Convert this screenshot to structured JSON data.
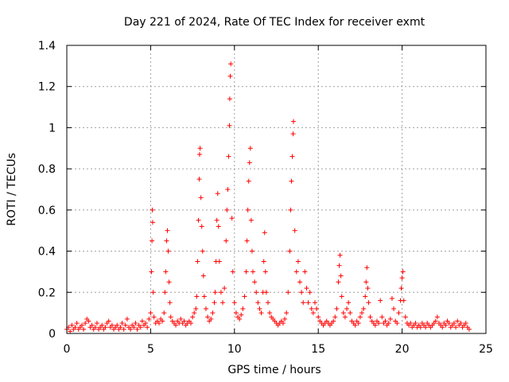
{
  "chart_data": {
    "type": "scatter",
    "title": "Day 221 of 2024, Rate Of TEC Index for receiver exmt",
    "xlabel": "GPS time / hours",
    "ylabel": "ROTI / TECUs",
    "xlim": [
      0,
      25
    ],
    "ylim": [
      0,
      1.4
    ],
    "xticks": [
      0,
      5,
      10,
      15,
      20,
      25
    ],
    "yticks": [
      0,
      0.2,
      0.4,
      0.6,
      0.8,
      1,
      1.2,
      1.4
    ],
    "ytick_labels": [
      "0",
      "0.2",
      "0.4",
      "0.6",
      "0.8",
      "1",
      "1.2",
      "1.4"
    ],
    "grid": true,
    "marker": "plus",
    "color": "#ff0000",
    "series": [
      {
        "points": [
          [
            0.0,
            0.02
          ],
          [
            0.1,
            0.03
          ],
          [
            0.2,
            0.01
          ],
          [
            0.3,
            0.04
          ],
          [
            0.4,
            0.02
          ],
          [
            0.5,
            0.03
          ],
          [
            0.6,
            0.05
          ],
          [
            0.7,
            0.02
          ],
          [
            0.8,
            0.03
          ],
          [
            0.9,
            0.04
          ],
          [
            1.0,
            0.02
          ],
          [
            1.1,
            0.05
          ],
          [
            1.2,
            0.07
          ],
          [
            1.3,
            0.06
          ],
          [
            1.4,
            0.03
          ],
          [
            1.5,
            0.04
          ],
          [
            1.6,
            0.02
          ],
          [
            1.7,
            0.03
          ],
          [
            1.8,
            0.05
          ],
          [
            1.9,
            0.02
          ],
          [
            2.0,
            0.03
          ],
          [
            2.1,
            0.04
          ],
          [
            2.2,
            0.02
          ],
          [
            2.3,
            0.03
          ],
          [
            2.4,
            0.05
          ],
          [
            2.5,
            0.06
          ],
          [
            2.6,
            0.03
          ],
          [
            2.7,
            0.04
          ],
          [
            2.8,
            0.02
          ],
          [
            2.9,
            0.03
          ],
          [
            3.0,
            0.04
          ],
          [
            3.1,
            0.02
          ],
          [
            3.2,
            0.03
          ],
          [
            3.3,
            0.05
          ],
          [
            3.4,
            0.02
          ],
          [
            3.5,
            0.04
          ],
          [
            3.6,
            0.07
          ],
          [
            3.7,
            0.03
          ],
          [
            3.8,
            0.02
          ],
          [
            3.9,
            0.04
          ],
          [
            4.0,
            0.03
          ],
          [
            4.1,
            0.05
          ],
          [
            4.2,
            0.02
          ],
          [
            4.3,
            0.04
          ],
          [
            4.4,
            0.03
          ],
          [
            4.5,
            0.06
          ],
          [
            4.6,
            0.04
          ],
          [
            4.7,
            0.05
          ],
          [
            4.8,
            0.03
          ],
          [
            4.9,
            0.07
          ],
          [
            5.0,
            0.1
          ],
          [
            5.05,
            0.3
          ],
          [
            5.08,
            0.45
          ],
          [
            5.1,
            0.6
          ],
          [
            5.12,
            0.54
          ],
          [
            5.15,
            0.2
          ],
          [
            5.2,
            0.08
          ],
          [
            5.3,
            0.05
          ],
          [
            5.4,
            0.06
          ],
          [
            5.5,
            0.05
          ],
          [
            5.6,
            0.07
          ],
          [
            5.7,
            0.06
          ],
          [
            5.8,
            0.1
          ],
          [
            5.85,
            0.2
          ],
          [
            5.9,
            0.3
          ],
          [
            5.95,
            0.45
          ],
          [
            6.0,
            0.5
          ],
          [
            6.05,
            0.4
          ],
          [
            6.1,
            0.25
          ],
          [
            6.15,
            0.15
          ],
          [
            6.2,
            0.08
          ],
          [
            6.3,
            0.06
          ],
          [
            6.4,
            0.05
          ],
          [
            6.5,
            0.04
          ],
          [
            6.6,
            0.06
          ],
          [
            6.7,
            0.05
          ],
          [
            6.8,
            0.07
          ],
          [
            6.9,
            0.05
          ],
          [
            7.0,
            0.06
          ],
          [
            7.1,
            0.04
          ],
          [
            7.2,
            0.05
          ],
          [
            7.3,
            0.06
          ],
          [
            7.4,
            0.05
          ],
          [
            7.5,
            0.08
          ],
          [
            7.6,
            0.1
          ],
          [
            7.7,
            0.12
          ],
          [
            7.75,
            0.18
          ],
          [
            7.8,
            0.35
          ],
          [
            7.85,
            0.55
          ],
          [
            7.9,
            0.75
          ],
          [
            7.92,
            0.87
          ],
          [
            7.95,
            0.9
          ],
          [
            8.0,
            0.66
          ],
          [
            8.05,
            0.52
          ],
          [
            8.1,
            0.4
          ],
          [
            8.15,
            0.28
          ],
          [
            8.2,
            0.18
          ],
          [
            8.3,
            0.12
          ],
          [
            8.4,
            0.08
          ],
          [
            8.5,
            0.06
          ],
          [
            8.6,
            0.07
          ],
          [
            8.7,
            0.1
          ],
          [
            8.8,
            0.15
          ],
          [
            8.85,
            0.2
          ],
          [
            8.9,
            0.35
          ],
          [
            8.95,
            0.55
          ],
          [
            9.0,
            0.68
          ],
          [
            9.05,
            0.52
          ],
          [
            9.1,
            0.35
          ],
          [
            9.2,
            0.2
          ],
          [
            9.3,
            0.15
          ],
          [
            9.4,
            0.22
          ],
          [
            9.5,
            0.45
          ],
          [
            9.55,
            0.6
          ],
          [
            9.6,
            0.7
          ],
          [
            9.65,
            0.86
          ],
          [
            9.7,
            1.01
          ],
          [
            9.72,
            1.14
          ],
          [
            9.75,
            1.25
          ],
          [
            9.78,
            1.31
          ],
          [
            9.85,
            0.56
          ],
          [
            9.9,
            0.3
          ],
          [
            10.0,
            0.15
          ],
          [
            10.1,
            0.1
          ],
          [
            10.2,
            0.08
          ],
          [
            10.3,
            0.07
          ],
          [
            10.4,
            0.09
          ],
          [
            10.5,
            0.12
          ],
          [
            10.6,
            0.18
          ],
          [
            10.7,
            0.3
          ],
          [
            10.75,
            0.45
          ],
          [
            10.8,
            0.6
          ],
          [
            10.85,
            0.74
          ],
          [
            10.9,
            0.83
          ],
          [
            10.95,
            0.9
          ],
          [
            11.0,
            0.55
          ],
          [
            11.05,
            0.4
          ],
          [
            11.1,
            0.3
          ],
          [
            11.2,
            0.25
          ],
          [
            11.3,
            0.2
          ],
          [
            11.4,
            0.15
          ],
          [
            11.5,
            0.12
          ],
          [
            11.6,
            0.1
          ],
          [
            11.7,
            0.2
          ],
          [
            11.75,
            0.35
          ],
          [
            11.8,
            0.49
          ],
          [
            11.85,
            0.3
          ],
          [
            11.9,
            0.2
          ],
          [
            12.0,
            0.15
          ],
          [
            12.1,
            0.1
          ],
          [
            12.2,
            0.08
          ],
          [
            12.3,
            0.07
          ],
          [
            12.4,
            0.06
          ],
          [
            12.5,
            0.05
          ],
          [
            12.6,
            0.04
          ],
          [
            12.7,
            0.05
          ],
          [
            12.8,
            0.06
          ],
          [
            12.9,
            0.05
          ],
          [
            13.0,
            0.07
          ],
          [
            13.1,
            0.1
          ],
          [
            13.2,
            0.2
          ],
          [
            13.3,
            0.4
          ],
          [
            13.35,
            0.6
          ],
          [
            13.4,
            0.74
          ],
          [
            13.45,
            0.86
          ],
          [
            13.5,
            0.97
          ],
          [
            13.52,
            1.03
          ],
          [
            13.6,
            0.5
          ],
          [
            13.7,
            0.3
          ],
          [
            13.8,
            0.35
          ],
          [
            13.9,
            0.25
          ],
          [
            14.0,
            0.2
          ],
          [
            14.1,
            0.15
          ],
          [
            14.2,
            0.3
          ],
          [
            14.3,
            0.22
          ],
          [
            14.4,
            0.15
          ],
          [
            14.5,
            0.2
          ],
          [
            14.6,
            0.12
          ],
          [
            14.7,
            0.1
          ],
          [
            14.8,
            0.15
          ],
          [
            14.9,
            0.12
          ],
          [
            15.0,
            0.08
          ],
          [
            15.1,
            0.06
          ],
          [
            15.2,
            0.05
          ],
          [
            15.3,
            0.04
          ],
          [
            15.4,
            0.05
          ],
          [
            15.5,
            0.06
          ],
          [
            15.6,
            0.05
          ],
          [
            15.7,
            0.04
          ],
          [
            15.8,
            0.05
          ],
          [
            15.9,
            0.06
          ],
          [
            16.0,
            0.08
          ],
          [
            16.1,
            0.12
          ],
          [
            16.2,
            0.25
          ],
          [
            16.25,
            0.33
          ],
          [
            16.3,
            0.38
          ],
          [
            16.35,
            0.28
          ],
          [
            16.4,
            0.18
          ],
          [
            16.5,
            0.1
          ],
          [
            16.6,
            0.08
          ],
          [
            16.7,
            0.12
          ],
          [
            16.8,
            0.15
          ],
          [
            16.9,
            0.1
          ],
          [
            17.0,
            0.06
          ],
          [
            17.1,
            0.05
          ],
          [
            17.2,
            0.04
          ],
          [
            17.3,
            0.06
          ],
          [
            17.4,
            0.05
          ],
          [
            17.5,
            0.08
          ],
          [
            17.6,
            0.1
          ],
          [
            17.7,
            0.12
          ],
          [
            17.8,
            0.18
          ],
          [
            17.85,
            0.25
          ],
          [
            17.9,
            0.32
          ],
          [
            17.95,
            0.22
          ],
          [
            18.0,
            0.15
          ],
          [
            18.1,
            0.08
          ],
          [
            18.2,
            0.06
          ],
          [
            18.3,
            0.05
          ],
          [
            18.4,
            0.04
          ],
          [
            18.5,
            0.06
          ],
          [
            18.6,
            0.05
          ],
          [
            18.7,
            0.16
          ],
          [
            18.8,
            0.08
          ],
          [
            18.9,
            0.05
          ],
          [
            19.0,
            0.06
          ],
          [
            19.1,
            0.04
          ],
          [
            19.2,
            0.05
          ],
          [
            19.3,
            0.07
          ],
          [
            19.4,
            0.17
          ],
          [
            19.5,
            0.12
          ],
          [
            19.6,
            0.06
          ],
          [
            19.7,
            0.05
          ],
          [
            19.8,
            0.1
          ],
          [
            19.9,
            0.16
          ],
          [
            19.95,
            0.22
          ],
          [
            20.0,
            0.27
          ],
          [
            20.05,
            0.3
          ],
          [
            20.1,
            0.16
          ],
          [
            20.2,
            0.08
          ],
          [
            20.3,
            0.05
          ],
          [
            20.4,
            0.04
          ],
          [
            20.5,
            0.05
          ],
          [
            20.6,
            0.03
          ],
          [
            20.7,
            0.04
          ],
          [
            20.8,
            0.05
          ],
          [
            20.9,
            0.03
          ],
          [
            21.0,
            0.04
          ],
          [
            21.1,
            0.03
          ],
          [
            21.2,
            0.05
          ],
          [
            21.3,
            0.04
          ],
          [
            21.4,
            0.03
          ],
          [
            21.5,
            0.05
          ],
          [
            21.6,
            0.04
          ],
          [
            21.7,
            0.03
          ],
          [
            21.8,
            0.04
          ],
          [
            21.9,
            0.05
          ],
          [
            22.0,
            0.06
          ],
          [
            22.1,
            0.08
          ],
          [
            22.2,
            0.05
          ],
          [
            22.3,
            0.04
          ],
          [
            22.4,
            0.03
          ],
          [
            22.5,
            0.05
          ],
          [
            22.6,
            0.04
          ],
          [
            22.7,
            0.06
          ],
          [
            22.8,
            0.05
          ],
          [
            22.9,
            0.03
          ],
          [
            23.0,
            0.04
          ],
          [
            23.1,
            0.05
          ],
          [
            23.2,
            0.03
          ],
          [
            23.3,
            0.06
          ],
          [
            23.4,
            0.04
          ],
          [
            23.5,
            0.05
          ],
          [
            23.6,
            0.03
          ],
          [
            23.7,
            0.04
          ],
          [
            23.8,
            0.05
          ],
          [
            23.9,
            0.03
          ],
          [
            24.0,
            0.02
          ]
        ]
      }
    ]
  }
}
